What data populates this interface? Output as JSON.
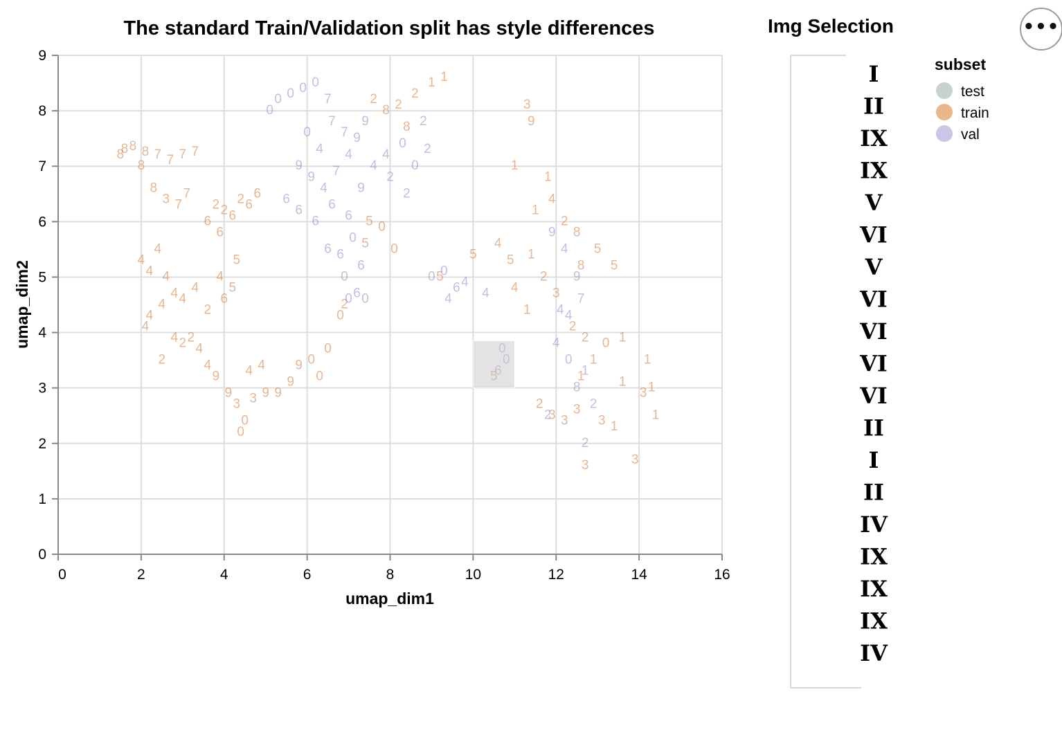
{
  "chart_data": {
    "type": "scatter",
    "title": "The standard Train/Validation split has style differences",
    "xlabel": "umap_dim1",
    "ylabel": "umap_dim2",
    "xlim": [
      0,
      16
    ],
    "ylim": [
      0,
      9
    ],
    "x_ticks": [
      "0",
      "2",
      "4",
      "6",
      "8",
      "10",
      "12",
      "14",
      "16"
    ],
    "y_ticks": [
      "0",
      "1",
      "2",
      "3",
      "4",
      "5",
      "6",
      "7",
      "8",
      "9"
    ],
    "grid": true,
    "marks_are_text": true,
    "legend": {
      "title": "subset",
      "placement": "right",
      "entries": [
        {
          "label": "test",
          "color": "#c7d1cf"
        },
        {
          "label": "train",
          "color": "#eab68b"
        },
        {
          "label": "val",
          "color": "#c9c6e6"
        }
      ]
    },
    "selection_brush": {
      "x": [
        10.0,
        11.0
      ],
      "y": [
        3.0,
        3.85
      ]
    },
    "series": [
      {
        "name": "train",
        "color": "#d07a3a",
        "points": [
          {
            "x": 1.6,
            "y": 7.3,
            "t": "8"
          },
          {
            "x": 1.8,
            "y": 7.35,
            "t": "8"
          },
          {
            "x": 2.1,
            "y": 7.25,
            "t": "8"
          },
          {
            "x": 2.4,
            "y": 7.2,
            "t": "7"
          },
          {
            "x": 2.7,
            "y": 7.1,
            "t": "7"
          },
          {
            "x": 3.0,
            "y": 7.2,
            "t": "7"
          },
          {
            "x": 3.3,
            "y": 7.25,
            "t": "7"
          },
          {
            "x": 1.5,
            "y": 7.2,
            "t": "8"
          },
          {
            "x": 2.0,
            "y": 7.0,
            "t": "8"
          },
          {
            "x": 2.3,
            "y": 6.6,
            "t": "8"
          },
          {
            "x": 2.6,
            "y": 6.4,
            "t": "3"
          },
          {
            "x": 2.9,
            "y": 6.3,
            "t": "7"
          },
          {
            "x": 3.1,
            "y": 6.5,
            "t": "7"
          },
          {
            "x": 3.8,
            "y": 6.3,
            "t": "2"
          },
          {
            "x": 4.0,
            "y": 6.2,
            "t": "2"
          },
          {
            "x": 4.2,
            "y": 6.1,
            "t": "6"
          },
          {
            "x": 4.4,
            "y": 6.4,
            "t": "2"
          },
          {
            "x": 4.6,
            "y": 6.3,
            "t": "6"
          },
          {
            "x": 4.8,
            "y": 6.5,
            "t": "6"
          },
          {
            "x": 3.6,
            "y": 6.0,
            "t": "6"
          },
          {
            "x": 3.9,
            "y": 5.8,
            "t": "6"
          },
          {
            "x": 2.0,
            "y": 5.3,
            "t": "4"
          },
          {
            "x": 2.2,
            "y": 5.1,
            "t": "4"
          },
          {
            "x": 2.4,
            "y": 5.5,
            "t": "4"
          },
          {
            "x": 2.6,
            "y": 5.0,
            "t": "4"
          },
          {
            "x": 2.8,
            "y": 4.7,
            "t": "4"
          },
          {
            "x": 2.5,
            "y": 4.5,
            "t": "4"
          },
          {
            "x": 2.2,
            "y": 4.3,
            "t": "4"
          },
          {
            "x": 2.1,
            "y": 4.1,
            "t": "4"
          },
          {
            "x": 3.0,
            "y": 4.6,
            "t": "4"
          },
          {
            "x": 3.3,
            "y": 4.8,
            "t": "4"
          },
          {
            "x": 3.9,
            "y": 5.0,
            "t": "4"
          },
          {
            "x": 4.0,
            "y": 4.6,
            "t": "6"
          },
          {
            "x": 4.2,
            "y": 4.8,
            "t": "5"
          },
          {
            "x": 4.3,
            "y": 5.3,
            "t": "5"
          },
          {
            "x": 3.6,
            "y": 4.4,
            "t": "2"
          },
          {
            "x": 2.8,
            "y": 3.9,
            "t": "4"
          },
          {
            "x": 3.0,
            "y": 3.8,
            "t": "2"
          },
          {
            "x": 3.2,
            "y": 3.9,
            "t": "2"
          },
          {
            "x": 3.4,
            "y": 3.7,
            "t": "4"
          },
          {
            "x": 2.5,
            "y": 3.5,
            "t": "2"
          },
          {
            "x": 3.6,
            "y": 3.4,
            "t": "4"
          },
          {
            "x": 3.8,
            "y": 3.2,
            "t": "9"
          },
          {
            "x": 4.1,
            "y": 2.9,
            "t": "9"
          },
          {
            "x": 4.3,
            "y": 2.7,
            "t": "3"
          },
          {
            "x": 4.5,
            "y": 2.4,
            "t": "0"
          },
          {
            "x": 4.4,
            "y": 2.2,
            "t": "0"
          },
          {
            "x": 4.7,
            "y": 2.8,
            "t": "3"
          },
          {
            "x": 5.0,
            "y": 2.9,
            "t": "9"
          },
          {
            "x": 5.3,
            "y": 2.9,
            "t": "9"
          },
          {
            "x": 5.6,
            "y": 3.1,
            "t": "9"
          },
          {
            "x": 4.6,
            "y": 3.3,
            "t": "4"
          },
          {
            "x": 4.9,
            "y": 3.4,
            "t": "4"
          },
          {
            "x": 5.8,
            "y": 3.4,
            "t": "9"
          },
          {
            "x": 6.1,
            "y": 3.5,
            "t": "0"
          },
          {
            "x": 6.3,
            "y": 3.2,
            "t": "0"
          },
          {
            "x": 6.5,
            "y": 3.7,
            "t": "0"
          },
          {
            "x": 7.6,
            "y": 8.2,
            "t": "2"
          },
          {
            "x": 7.9,
            "y": 8.0,
            "t": "8"
          },
          {
            "x": 8.2,
            "y": 8.1,
            "t": "2"
          },
          {
            "x": 8.6,
            "y": 8.3,
            "t": "2"
          },
          {
            "x": 9.0,
            "y": 8.5,
            "t": "1"
          },
          {
            "x": 9.3,
            "y": 8.6,
            "t": "1"
          },
          {
            "x": 8.4,
            "y": 7.7,
            "t": "8"
          },
          {
            "x": 7.5,
            "y": 6.0,
            "t": "5"
          },
          {
            "x": 7.8,
            "y": 5.9,
            "t": "0"
          },
          {
            "x": 8.1,
            "y": 5.5,
            "t": "0"
          },
          {
            "x": 7.4,
            "y": 5.6,
            "t": "5"
          },
          {
            "x": 6.8,
            "y": 4.3,
            "t": "0"
          },
          {
            "x": 6.9,
            "y": 4.5,
            "t": "2"
          },
          {
            "x": 11.0,
            "y": 7.0,
            "t": "1"
          },
          {
            "x": 11.4,
            "y": 7.8,
            "t": "9"
          },
          {
            "x": 11.3,
            "y": 8.1,
            "t": "3"
          },
          {
            "x": 11.8,
            "y": 6.8,
            "t": "1"
          },
          {
            "x": 11.9,
            "y": 6.4,
            "t": "4"
          },
          {
            "x": 12.2,
            "y": 6.0,
            "t": "2"
          },
          {
            "x": 12.5,
            "y": 5.8,
            "t": "8"
          },
          {
            "x": 11.5,
            "y": 6.2,
            "t": "1"
          },
          {
            "x": 11.4,
            "y": 5.4,
            "t": "1"
          },
          {
            "x": 11.7,
            "y": 5.0,
            "t": "2"
          },
          {
            "x": 11.0,
            "y": 4.8,
            "t": "4"
          },
          {
            "x": 11.3,
            "y": 4.4,
            "t": "1"
          },
          {
            "x": 12.0,
            "y": 4.7,
            "t": "3"
          },
          {
            "x": 12.6,
            "y": 5.2,
            "t": "8"
          },
          {
            "x": 13.0,
            "y": 5.5,
            "t": "5"
          },
          {
            "x": 13.4,
            "y": 5.2,
            "t": "5"
          },
          {
            "x": 12.4,
            "y": 4.1,
            "t": "2"
          },
          {
            "x": 12.7,
            "y": 3.9,
            "t": "2"
          },
          {
            "x": 12.9,
            "y": 3.5,
            "t": "1"
          },
          {
            "x": 12.6,
            "y": 3.2,
            "t": "1"
          },
          {
            "x": 13.2,
            "y": 3.8,
            "t": "0"
          },
          {
            "x": 13.6,
            "y": 3.9,
            "t": "1"
          },
          {
            "x": 11.6,
            "y": 2.7,
            "t": "2"
          },
          {
            "x": 11.9,
            "y": 2.5,
            "t": "3"
          },
          {
            "x": 12.2,
            "y": 2.4,
            "t": "3"
          },
          {
            "x": 12.5,
            "y": 2.6,
            "t": "3"
          },
          {
            "x": 12.7,
            "y": 1.6,
            "t": "3"
          },
          {
            "x": 13.1,
            "y": 2.4,
            "t": "3"
          },
          {
            "x": 13.4,
            "y": 2.3,
            "t": "1"
          },
          {
            "x": 13.9,
            "y": 1.7,
            "t": "3"
          },
          {
            "x": 13.6,
            "y": 3.1,
            "t": "1"
          },
          {
            "x": 14.2,
            "y": 3.5,
            "t": "1"
          },
          {
            "x": 14.3,
            "y": 3.0,
            "t": "1"
          },
          {
            "x": 14.4,
            "y": 2.5,
            "t": "1"
          },
          {
            "x": 14.1,
            "y": 2.9,
            "t": "3"
          },
          {
            "x": 9.2,
            "y": 5.0,
            "t": "5"
          },
          {
            "x": 10.0,
            "y": 5.4,
            "t": "5"
          },
          {
            "x": 10.6,
            "y": 5.6,
            "t": "4"
          },
          {
            "x": 10.9,
            "y": 5.3,
            "t": "5"
          },
          {
            "x": 10.5,
            "y": 3.2,
            "t": "5"
          }
        ]
      },
      {
        "name": "val",
        "color": "#8e88c9",
        "points": [
          {
            "x": 5.3,
            "y": 8.2,
            "t": "0"
          },
          {
            "x": 5.6,
            "y": 8.3,
            "t": "0"
          },
          {
            "x": 5.9,
            "y": 8.4,
            "t": "0"
          },
          {
            "x": 6.2,
            "y": 8.5,
            "t": "0"
          },
          {
            "x": 5.1,
            "y": 8.0,
            "t": "0"
          },
          {
            "x": 6.5,
            "y": 8.2,
            "t": "7"
          },
          {
            "x": 6.0,
            "y": 7.6,
            "t": "0"
          },
          {
            "x": 6.3,
            "y": 7.3,
            "t": "4"
          },
          {
            "x": 6.6,
            "y": 7.8,
            "t": "7"
          },
          {
            "x": 6.9,
            "y": 7.6,
            "t": "7"
          },
          {
            "x": 7.2,
            "y": 7.5,
            "t": "9"
          },
          {
            "x": 7.4,
            "y": 7.8,
            "t": "9"
          },
          {
            "x": 5.8,
            "y": 7.0,
            "t": "9"
          },
          {
            "x": 6.1,
            "y": 6.8,
            "t": "9"
          },
          {
            "x": 6.4,
            "y": 6.6,
            "t": "4"
          },
          {
            "x": 6.7,
            "y": 6.9,
            "t": "7"
          },
          {
            "x": 7.0,
            "y": 7.2,
            "t": "4"
          },
          {
            "x": 7.3,
            "y": 6.6,
            "t": "9"
          },
          {
            "x": 7.6,
            "y": 7.0,
            "t": "4"
          },
          {
            "x": 7.9,
            "y": 7.2,
            "t": "4"
          },
          {
            "x": 5.5,
            "y": 6.4,
            "t": "6"
          },
          {
            "x": 5.8,
            "y": 6.2,
            "t": "6"
          },
          {
            "x": 6.2,
            "y": 6.0,
            "t": "6"
          },
          {
            "x": 6.6,
            "y": 6.3,
            "t": "6"
          },
          {
            "x": 7.0,
            "y": 6.1,
            "t": "6"
          },
          {
            "x": 6.5,
            "y": 5.5,
            "t": "6"
          },
          {
            "x": 6.8,
            "y": 5.4,
            "t": "6"
          },
          {
            "x": 7.1,
            "y": 5.7,
            "t": "0"
          },
          {
            "x": 7.3,
            "y": 5.2,
            "t": "6"
          },
          {
            "x": 6.9,
            "y": 5.0,
            "t": "0"
          },
          {
            "x": 7.2,
            "y": 4.7,
            "t": "6"
          },
          {
            "x": 7.4,
            "y": 4.6,
            "t": "0"
          },
          {
            "x": 7.0,
            "y": 4.6,
            "t": "0"
          },
          {
            "x": 8.3,
            "y": 7.4,
            "t": "0"
          },
          {
            "x": 8.6,
            "y": 7.0,
            "t": "0"
          },
          {
            "x": 8.8,
            "y": 7.8,
            "t": "2"
          },
          {
            "x": 8.0,
            "y": 6.8,
            "t": "2"
          },
          {
            "x": 8.4,
            "y": 6.5,
            "t": "2"
          },
          {
            "x": 8.9,
            "y": 7.3,
            "t": "2"
          },
          {
            "x": 9.0,
            "y": 5.0,
            "t": "0"
          },
          {
            "x": 9.3,
            "y": 5.1,
            "t": "0"
          },
          {
            "x": 9.6,
            "y": 4.8,
            "t": "6"
          },
          {
            "x": 9.8,
            "y": 4.9,
            "t": "4"
          },
          {
            "x": 9.4,
            "y": 4.6,
            "t": "4"
          },
          {
            "x": 10.3,
            "y": 4.7,
            "t": "4"
          },
          {
            "x": 10.7,
            "y": 3.7,
            "t": "0"
          },
          {
            "x": 10.8,
            "y": 3.5,
            "t": "0"
          },
          {
            "x": 10.6,
            "y": 3.3,
            "t": "6"
          },
          {
            "x": 11.9,
            "y": 5.8,
            "t": "9"
          },
          {
            "x": 12.2,
            "y": 5.5,
            "t": "4"
          },
          {
            "x": 12.5,
            "y": 5.0,
            "t": "9"
          },
          {
            "x": 12.1,
            "y": 4.4,
            "t": "4"
          },
          {
            "x": 12.3,
            "y": 4.3,
            "t": "4"
          },
          {
            "x": 12.6,
            "y": 4.6,
            "t": "7"
          },
          {
            "x": 12.0,
            "y": 3.8,
            "t": "4"
          },
          {
            "x": 12.3,
            "y": 3.5,
            "t": "0"
          },
          {
            "x": 12.7,
            "y": 3.3,
            "t": "1"
          },
          {
            "x": 12.5,
            "y": 3.0,
            "t": "8"
          },
          {
            "x": 12.7,
            "y": 2.0,
            "t": "2"
          },
          {
            "x": 11.8,
            "y": 2.5,
            "t": "2"
          },
          {
            "x": 12.9,
            "y": 2.7,
            "t": "2"
          }
        ]
      }
    ]
  },
  "side_panel": {
    "title": "Img Selection",
    "glyphs": [
      "I",
      "II",
      "IX",
      "IX",
      "V",
      "VI",
      "V",
      "VI",
      "VI",
      "VI",
      "VI",
      "II",
      "I",
      "II",
      "IV",
      "IX",
      "IX",
      "IX",
      "IV"
    ]
  },
  "action_menu": {
    "label": "•••"
  },
  "colors": {
    "grid": "#dddddd",
    "axis": "#888888",
    "brush": "#c8c8c8"
  }
}
